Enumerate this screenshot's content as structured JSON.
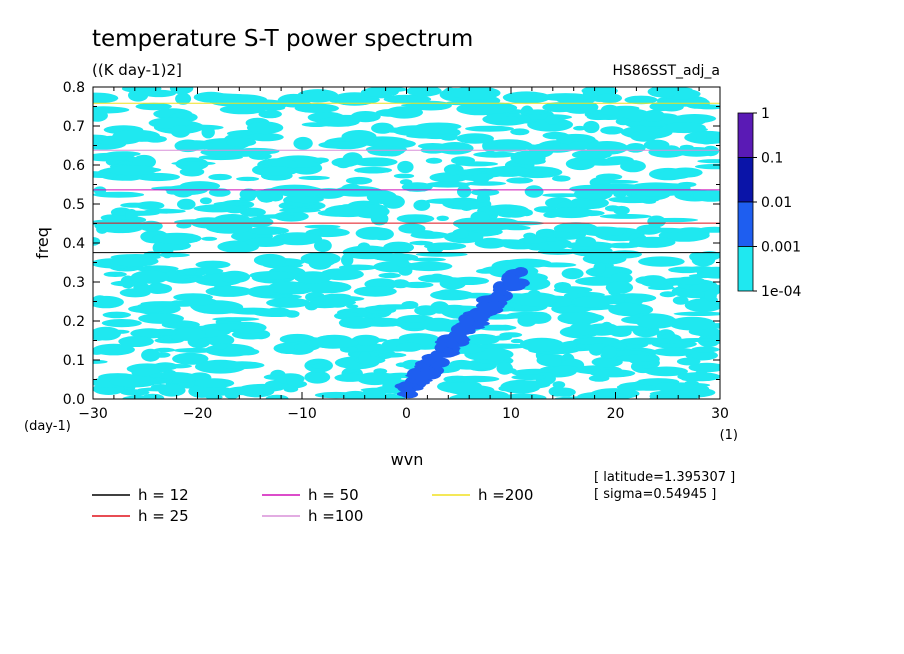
{
  "chart_data": {
    "type": "heatmap",
    "title": "temperature S-T power spectrum",
    "units_label": "((K day-1)2]",
    "dataset_label": "HS86SST_adj_a",
    "xlabel": "wvn",
    "ylabel": "freq",
    "x_unit_label": "(1)",
    "y_unit_label": "(day-1)",
    "xlim": [
      -30,
      30
    ],
    "ylim": [
      0,
      0.8
    ],
    "x_ticks": [
      -30,
      -20,
      -10,
      0,
      10,
      20,
      30
    ],
    "x_tick_labels": [
      "-30",
      "-20",
      "-10",
      "0",
      "10",
      "20",
      "30"
    ],
    "y_ticks": [
      0,
      0.1,
      0.2,
      0.3,
      0.4,
      0.5,
      0.6,
      0.7,
      0.8
    ],
    "y_tick_labels": [
      "0.0",
      "0.1",
      "0.2",
      "0.3",
      "0.4",
      "0.5",
      "0.6",
      "0.7",
      "0.8"
    ],
    "colorbar": {
      "levels": [
        "1",
        "0.1",
        "0.01",
        "0.001",
        "1e-04"
      ],
      "colors": [
        "#5a1ab5",
        "#0a14a8",
        "#1e5ef0",
        "#1fe8f0"
      ],
      "scale": "log"
    },
    "dispersion_curves": [
      {
        "label": "h = 12",
        "h": 12,
        "color": "#000000"
      },
      {
        "label": "h = 25",
        "h": 25,
        "color": "#e0101a"
      },
      {
        "label": "h = 50",
        "h": 50,
        "color": "#d010b8"
      },
      {
        "label": "h =100",
        "h": 100,
        "color": "#d890d8"
      },
      {
        "label": "h =200",
        "h": 200,
        "color": "#f0e020"
      }
    ],
    "annotations": {
      "latitude": "[ latitude=1.395307 ]",
      "sigma": "[ sigma=0.54945 ]"
    }
  }
}
